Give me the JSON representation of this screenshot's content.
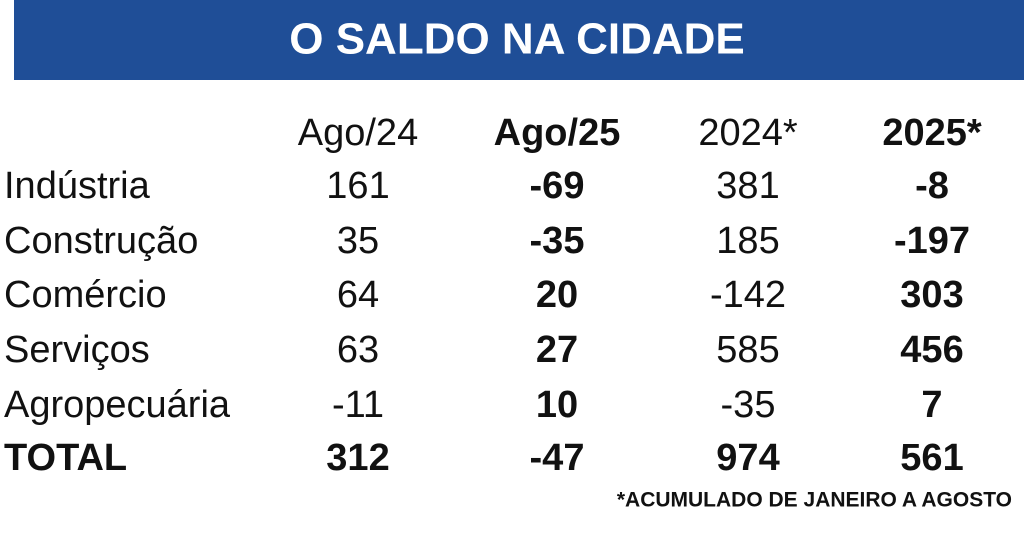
{
  "header": {
    "title": "O SALDO NA CIDADE"
  },
  "table": {
    "columns": [
      "Ago/24",
      "Ago/25",
      "2024*",
      "2025*"
    ],
    "bold_columns": [
      false,
      true,
      false,
      true
    ],
    "rows": [
      {
        "label": "Indústria",
        "values": [
          161,
          -69,
          381,
          -8
        ]
      },
      {
        "label": "Construção",
        "values": [
          35,
          -35,
          185,
          -197
        ]
      },
      {
        "label": "Comércio",
        "values": [
          64,
          20,
          -142,
          303
        ]
      },
      {
        "label": "Serviços",
        "values": [
          63,
          27,
          585,
          456
        ]
      },
      {
        "label": "Agropecuária",
        "values": [
          -11,
          10,
          -35,
          7
        ]
      }
    ],
    "total": {
      "label": "TOTAL",
      "values": [
        312,
        -47,
        974,
        561
      ]
    }
  },
  "footnote": "*ACUMULADO DE JANEIRO A AGOSTO"
}
